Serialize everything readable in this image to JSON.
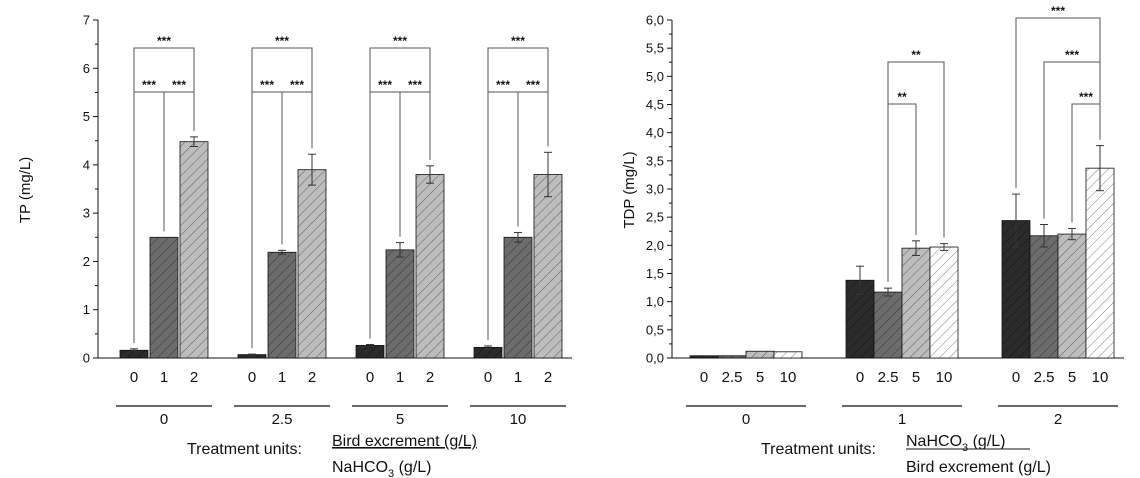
{
  "chart_data": [
    {
      "type": "bar",
      "ylabel": "TP (mg/L)",
      "ylim": [
        0,
        7
      ],
      "yticks": [
        "0",
        "1",
        "2",
        "3",
        "4",
        "5",
        "6",
        "7"
      ],
      "group_labels": [
        "0",
        "2.5",
        "5",
        "10"
      ],
      "bar_labels": [
        "0",
        "1",
        "2"
      ],
      "bar_fills": [
        "#2b2b2b",
        "#6c6c6c",
        "#bdbdbd"
      ],
      "values": [
        [
          0.16,
          2.5,
          4.48
        ],
        [
          0.07,
          2.19,
          3.9
        ],
        [
          0.26,
          2.24,
          3.8
        ],
        [
          0.22,
          2.5,
          3.8
        ]
      ],
      "errors": [
        [
          0.03,
          0,
          0.1
        ],
        [
          0.01,
          0.04,
          0.32
        ],
        [
          0.02,
          0.15,
          0.18
        ],
        [
          0.03,
          0.1,
          0.46
        ]
      ],
      "significance": [
        {
          "group": 0,
          "from": 0,
          "to": 2,
          "label": "***"
        },
        {
          "group": 0,
          "from": 0,
          "to": 1,
          "label": "***"
        },
        {
          "group": 0,
          "from": 1,
          "to": 2,
          "label": "***"
        },
        {
          "group": 1,
          "from": 0,
          "to": 2,
          "label": "***"
        },
        {
          "group": 1,
          "from": 0,
          "to": 1,
          "label": "***"
        },
        {
          "group": 1,
          "from": 1,
          "to": 2,
          "label": "***"
        },
        {
          "group": 2,
          "from": 0,
          "to": 2,
          "label": "***"
        },
        {
          "group": 2,
          "from": 0,
          "to": 1,
          "label": "***"
        },
        {
          "group": 2,
          "from": 1,
          "to": 2,
          "label": "***"
        },
        {
          "group": 3,
          "from": 0,
          "to": 2,
          "label": "***"
        },
        {
          "group": 3,
          "from": 0,
          "to": 1,
          "label": "***"
        },
        {
          "group": 3,
          "from": 1,
          "to": 2,
          "label": "***"
        }
      ],
      "treatment_prefix": "Treatment units:",
      "treatment_top": "Bird excrement (g/L)",
      "treatment_bottom": "NaHCO",
      "treatment_bottom_sub": "3",
      "treatment_bottom_unit": " (g/L)"
    },
    {
      "type": "bar",
      "ylabel": "TDP (mg/L)",
      "ylim": [
        0,
        6
      ],
      "yticks": [
        "0,0",
        "0,5",
        "1,0",
        "1,5",
        "2,0",
        "2,5",
        "3,0",
        "3,5",
        "4,0",
        "4,5",
        "5,0",
        "5,5",
        "6,0"
      ],
      "group_labels": [
        "0",
        "1",
        "2"
      ],
      "bar_labels": [
        "0",
        "2.5",
        "5",
        "10"
      ],
      "bar_fills": [
        "#2b2b2b",
        "#6c6c6c",
        "#bdbdbd",
        "#ffffff"
      ],
      "values": [
        [
          0.04,
          0.04,
          0.12,
          0.11
        ],
        [
          1.38,
          1.17,
          1.95,
          1.97
        ],
        [
          2.44,
          2.17,
          2.2,
          3.37
        ]
      ],
      "errors": [
        [
          0,
          0,
          0,
          0
        ],
        [
          0.25,
          0.07,
          0.13,
          0.06
        ],
        [
          0.47,
          0.2,
          0.1,
          0.4
        ]
      ],
      "significance": [
        {
          "group": 1,
          "from": 1,
          "to": 3,
          "label": "**"
        },
        {
          "group": 1,
          "from": 1,
          "to": 2,
          "label": "**"
        },
        {
          "group": 2,
          "from": 0,
          "to": 3,
          "label": "***"
        },
        {
          "group": 2,
          "from": 1,
          "to": 3,
          "label": "***"
        },
        {
          "group": 2,
          "from": 2,
          "to": 3,
          "label": "***"
        }
      ],
      "treatment_prefix": "Treatment units:",
      "treatment_top": "NaHCO",
      "treatment_top_sub": "3",
      "treatment_top_unit": " (g/L)",
      "treatment_bottom": "Bird excrement (g/L)"
    }
  ]
}
